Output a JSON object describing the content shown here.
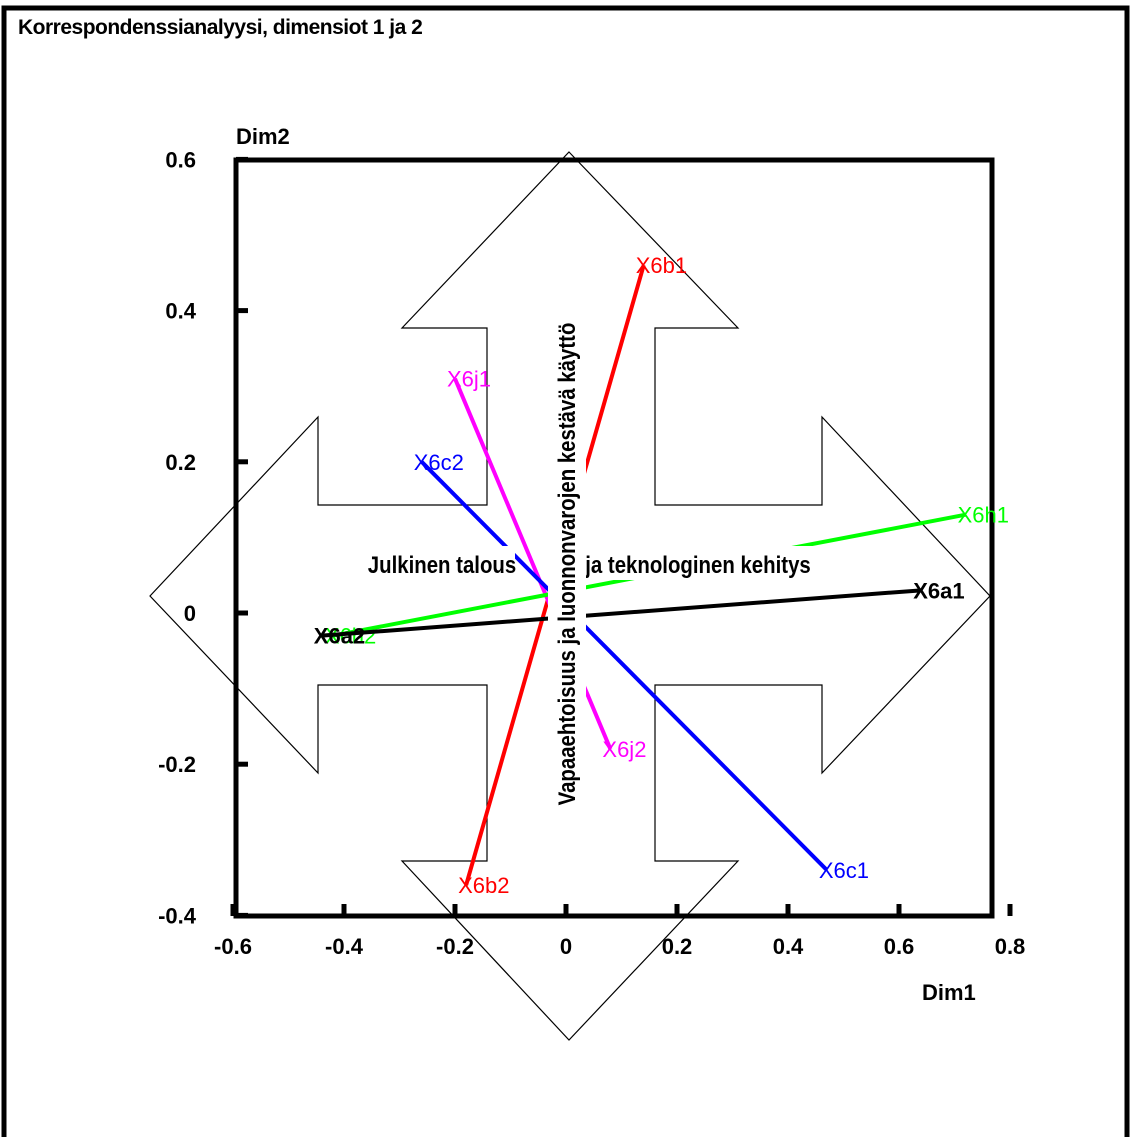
{
  "title": "Korrespondenssianalyysi, dimensiot 1 ja 2",
  "chart_data": {
    "type": "scatter",
    "title": "Korrespondenssianalyysi, dimensiot 1 ja 2",
    "xlabel": "Dim1",
    "ylabel": "Dim2",
    "xlim": [
      -0.62,
      0.8
    ],
    "ylim": [
      -0.4,
      0.6
    ],
    "xticks": [
      "-0.6",
      "-0.4",
      "-0.2",
      "0",
      "0.2",
      "0.4",
      "0.6",
      "0.8"
    ],
    "yticks": [
      "0.6",
      "0.4",
      "0.2",
      "0",
      "-0.2",
      "-0.4"
    ],
    "grid": false,
    "series": [
      {
        "color": "#ff0000",
        "points": [
          {
            "label": "X6b1",
            "x": 0.14,
            "y": 0.46
          },
          {
            "label": "X6b2",
            "x": -0.18,
            "y": -0.36
          }
        ]
      },
      {
        "color": "#ff00ff",
        "points": [
          {
            "label": "X6j1",
            "x": -0.2,
            "y": 0.31
          },
          {
            "label": "X6j2",
            "x": 0.08,
            "y": -0.18
          }
        ]
      },
      {
        "color": "#0000ff",
        "points": [
          {
            "label": "X6c2",
            "x": -0.26,
            "y": 0.2
          },
          {
            "label": "X6c1",
            "x": 0.47,
            "y": -0.34
          }
        ]
      },
      {
        "color": "#00ff00",
        "points": [
          {
            "label": "X6h1",
            "x": 0.72,
            "y": 0.13
          },
          {
            "label": "X6h2",
            "x": -0.42,
            "y": -0.03
          }
        ]
      },
      {
        "color": "#000000",
        "points": [
          {
            "label": "X6a1",
            "x": 0.64,
            "y": 0.03
          },
          {
            "label": "X6a2",
            "x": -0.44,
            "y": -0.03
          }
        ]
      }
    ],
    "annotations": [
      {
        "text": "Julkinen talous"
      },
      {
        "text": "ja teknologinen kehitys"
      },
      {
        "text": "Vapaaehtoisuus ja luonnonvarojen kestävä käyttö"
      }
    ]
  }
}
